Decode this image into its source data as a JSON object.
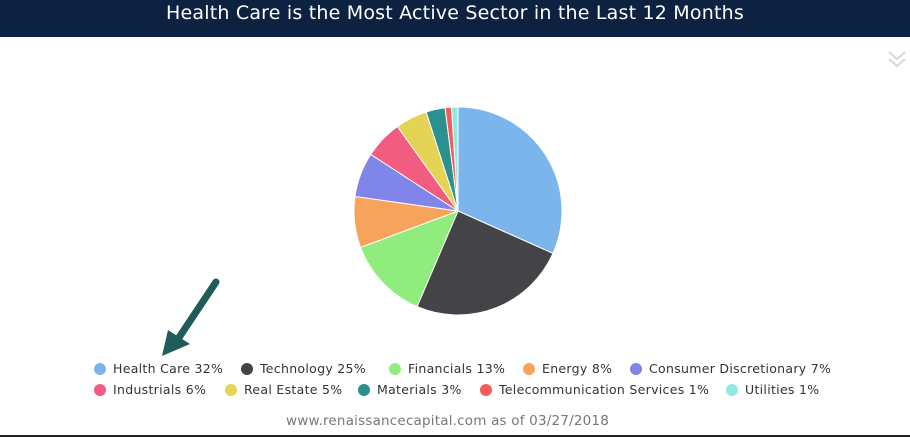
{
  "header": {
    "title": "Health Care is the Most Active Sector in the Last 12 Months"
  },
  "footer": {
    "source": "www.renaissancecapital.com as of 03/27/2018"
  },
  "icons": {
    "collapse": "double-chevron-down-icon",
    "annotation": "arrow-pointer-icon"
  },
  "chart_data": {
    "type": "pie",
    "title": "Health Care is the Most Active Sector in the Last 12 Months",
    "slices": [
      {
        "name": "Health Care",
        "value": 32,
        "legend_label": "Health Care 32%",
        "color": "#7cb5ec"
      },
      {
        "name": "Technology",
        "value": 25,
        "legend_label": "Technology 25%",
        "color": "#434348"
      },
      {
        "name": "Financials",
        "value": 13,
        "legend_label": "Financials 13%",
        "color": "#90ed7d"
      },
      {
        "name": "Energy",
        "value": 8,
        "legend_label": "Energy 8%",
        "color": "#f7a35c"
      },
      {
        "name": "Consumer Discretionary",
        "value": 7,
        "legend_label": "Consumer Discretionary 7%",
        "color": "#8085e9"
      },
      {
        "name": "Industrials",
        "value": 6,
        "legend_label": "Industrials 6%",
        "color": "#f15c80"
      },
      {
        "name": "Real Estate",
        "value": 5,
        "legend_label": "Real Estate 5%",
        "color": "#e4d354"
      },
      {
        "name": "Materials",
        "value": 3,
        "legend_label": "Materials 3%",
        "color": "#2b908f"
      },
      {
        "name": "Telecommunication Services",
        "value": 1,
        "legend_label": "Telecommunication Services 1%",
        "color": "#f45b5b"
      },
      {
        "name": "Utilities",
        "value": 1,
        "legend_label": "Utilities 1%",
        "color": "#91e8e1"
      }
    ],
    "legend_placement": "bottom",
    "annotation_color": "#1f5c5a"
  }
}
